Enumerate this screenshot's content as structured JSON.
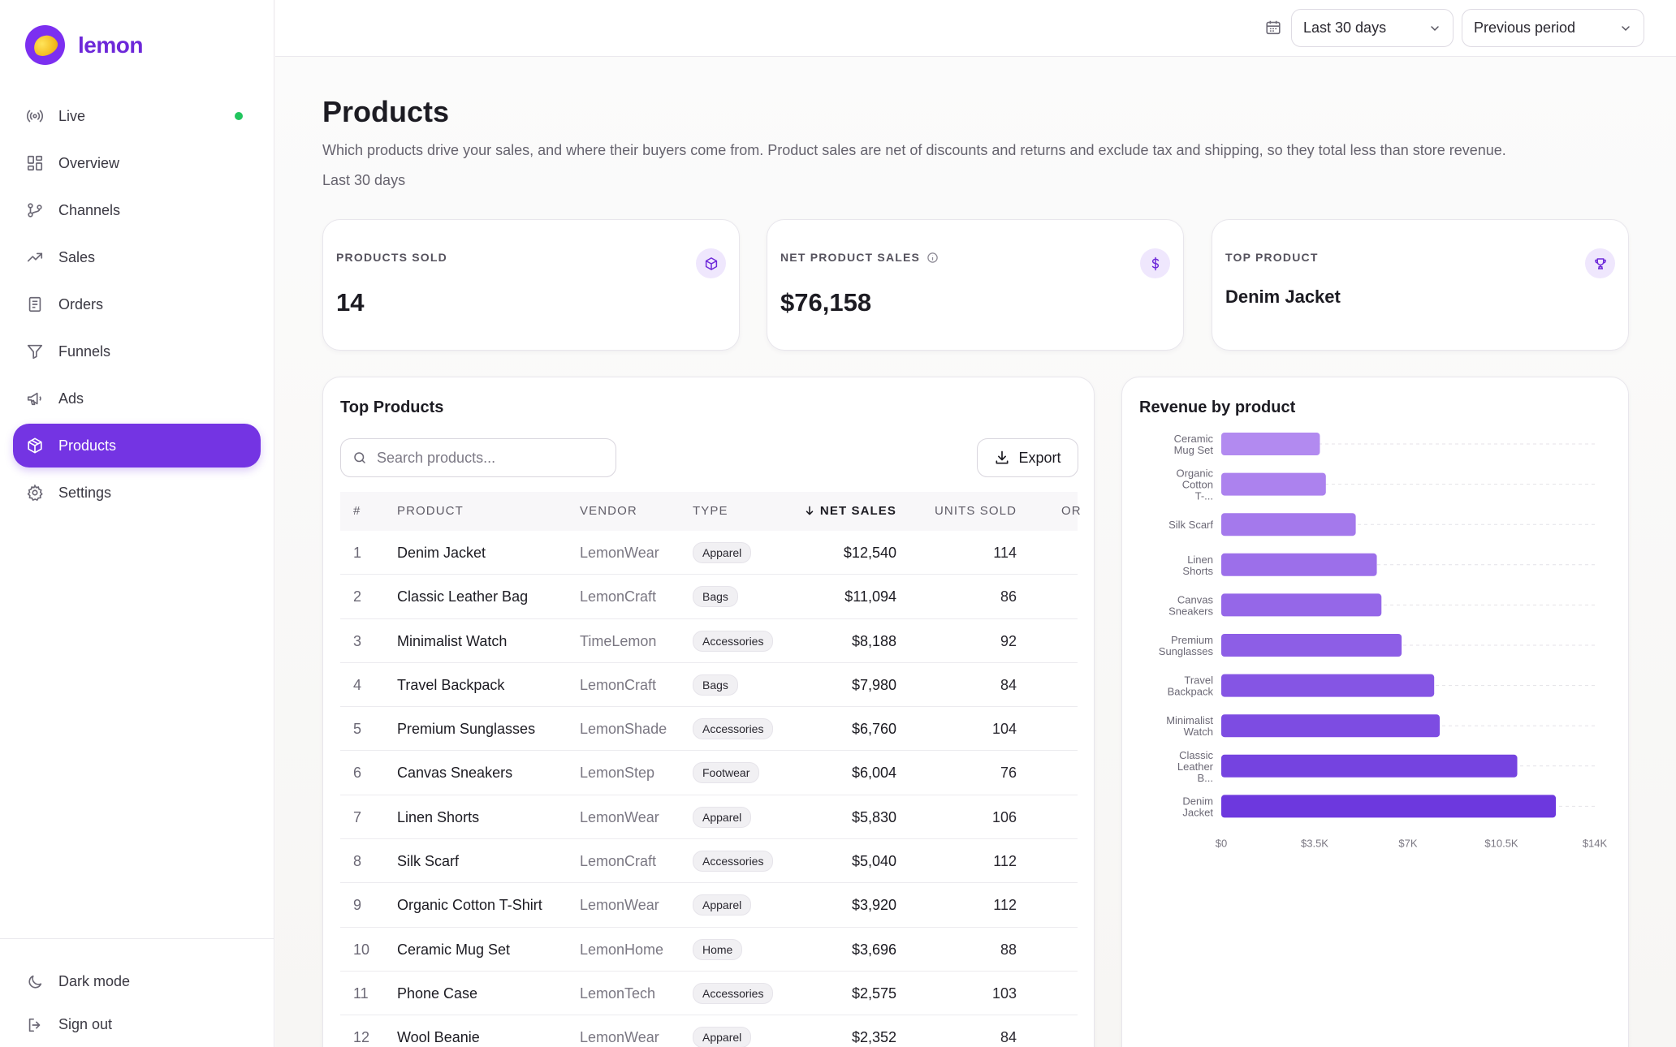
{
  "brand": {
    "name": "lemon"
  },
  "nav": {
    "items": [
      {
        "label": "Live",
        "icon": "broadcast-icon"
      },
      {
        "label": "Overview",
        "icon": "grid-icon"
      },
      {
        "label": "Channels",
        "icon": "branch-icon"
      },
      {
        "label": "Sales",
        "icon": "trend-up-icon"
      },
      {
        "label": "Orders",
        "icon": "receipt-icon"
      },
      {
        "label": "Funnels",
        "icon": "funnel-icon"
      },
      {
        "label": "Ads",
        "icon": "megaphone-icon"
      },
      {
        "label": "Products",
        "icon": "box-icon",
        "active": true
      },
      {
        "label": "Settings",
        "icon": "gear-icon"
      }
    ],
    "footer": [
      {
        "label": "Dark mode",
        "icon": "moon-icon"
      },
      {
        "label": "Sign out",
        "icon": "sign-out-icon"
      }
    ]
  },
  "topbar": {
    "range": "Last 30 days",
    "comparison": "Previous period"
  },
  "page": {
    "title": "Products",
    "description": "Which products drive your sales, and where their buyers come from. Product sales are net of discounts and returns and exclude tax and shipping, so they total less than store revenue.",
    "range_label": "Last 30 days"
  },
  "kpis": [
    {
      "label": "PRODUCTS SOLD",
      "value": "14",
      "icon": "box-icon"
    },
    {
      "label": "NET PRODUCT SALES",
      "value": "$76,158",
      "icon": "dollar-icon"
    },
    {
      "label": "TOP PRODUCT",
      "value": "Denim Jacket",
      "icon": "trophy-icon"
    }
  ],
  "table": {
    "title": "Top Products",
    "search_placeholder": "Search products...",
    "export_label": "Export",
    "columns": [
      "#",
      "PRODUCT",
      "VENDOR",
      "TYPE",
      "NET SALES",
      "UNITS SOLD",
      "OR"
    ],
    "rows": [
      {
        "rank": "1",
        "product": "Denim Jacket",
        "vendor": "LemonWear",
        "type": "Apparel",
        "sales": "$12,540",
        "units": "114"
      },
      {
        "rank": "2",
        "product": "Classic Leather Bag",
        "vendor": "LemonCraft",
        "type": "Bags",
        "sales": "$11,094",
        "units": "86"
      },
      {
        "rank": "3",
        "product": "Minimalist Watch",
        "vendor": "TimeLemon",
        "type": "Accessories",
        "sales": "$8,188",
        "units": "92"
      },
      {
        "rank": "4",
        "product": "Travel Backpack",
        "vendor": "LemonCraft",
        "type": "Bags",
        "sales": "$7,980",
        "units": "84"
      },
      {
        "rank": "5",
        "product": "Premium Sunglasses",
        "vendor": "LemonShade",
        "type": "Accessories",
        "sales": "$6,760",
        "units": "104"
      },
      {
        "rank": "6",
        "product": "Canvas Sneakers",
        "vendor": "LemonStep",
        "type": "Footwear",
        "sales": "$6,004",
        "units": "76"
      },
      {
        "rank": "7",
        "product": "Linen Shorts",
        "vendor": "LemonWear",
        "type": "Apparel",
        "sales": "$5,830",
        "units": "106"
      },
      {
        "rank": "8",
        "product": "Silk Scarf",
        "vendor": "LemonCraft",
        "type": "Accessories",
        "sales": "$5,040",
        "units": "112"
      },
      {
        "rank": "9",
        "product": "Organic Cotton T-Shirt",
        "vendor": "LemonWear",
        "type": "Apparel",
        "sales": "$3,920",
        "units": "112"
      },
      {
        "rank": "10",
        "product": "Ceramic Mug Set",
        "vendor": "LemonHome",
        "type": "Home",
        "sales": "$3,696",
        "units": "88"
      },
      {
        "rank": "11",
        "product": "Phone Case",
        "vendor": "LemonTech",
        "type": "Accessories",
        "sales": "$2,575",
        "units": "103"
      },
      {
        "rank": "12",
        "product": "Wool Beanie",
        "vendor": "LemonWear",
        "type": "Apparel",
        "sales": "$2,352",
        "units": "84"
      }
    ]
  },
  "chart_data": {
    "type": "bar",
    "orientation": "horizontal",
    "title": "Revenue by product",
    "categories": [
      [
        "Ceramic",
        "Mug Set"
      ],
      [
        "Organic",
        "Cotton",
        "T-..."
      ],
      [
        "Silk Scarf"
      ],
      [
        "Linen",
        "Shorts"
      ],
      [
        "Canvas",
        "Sneakers"
      ],
      [
        "Premium",
        "Sunglasses"
      ],
      [
        "Travel",
        "Backpack"
      ],
      [
        "Minimalist",
        "Watch"
      ],
      [
        "Classic",
        "Leather",
        "B..."
      ],
      [
        "Denim",
        "Jacket"
      ]
    ],
    "values": [
      3696,
      3920,
      5040,
      5830,
      6004,
      6760,
      7980,
      8188,
      11094,
      12540
    ],
    "xlim": [
      0,
      14000
    ],
    "xticks": [
      "$0",
      "$3.5K",
      "$7K",
      "$10.5K",
      "$14K"
    ],
    "xtick_values": [
      0,
      3500,
      7000,
      10500,
      14000
    ],
    "grid": true,
    "colors": [
      "#b28af0",
      "#ac82ee",
      "#a479ec",
      "#9c6fea",
      "#9567e8",
      "#8d5ee6",
      "#8555e4",
      "#7d4ce2",
      "#7543e0",
      "#6d38de"
    ]
  }
}
